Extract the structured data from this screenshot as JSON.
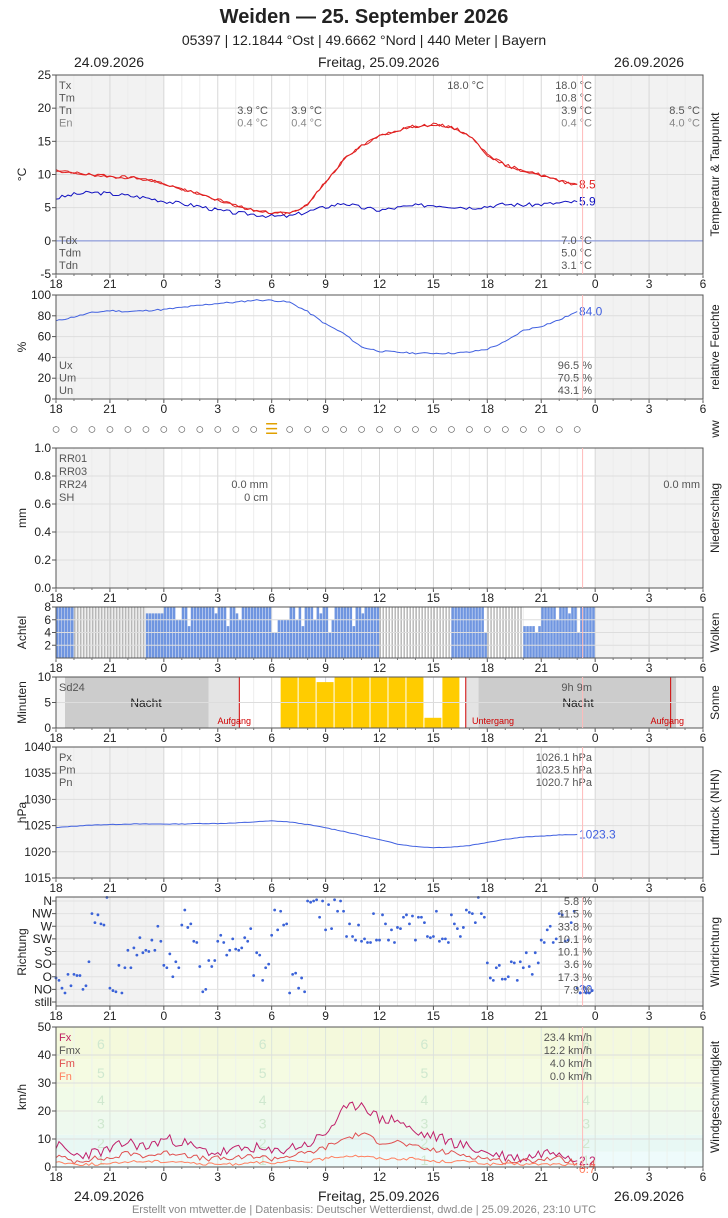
{
  "header": {
    "title": "Weiden  —  25. September 2026",
    "subtitle": "05397  |  12.1844 °Ost  |  49.6662 °Nord  |  440 Meter  |  Bayern",
    "date_prev": "24.09.2026",
    "date_main": "Freitag, 25.09.2026",
    "date_next": "26.09.2026"
  },
  "footer": {
    "credit": "Erstellt von mtwetter.de | Datenbasis: Deutscher Wetterdienst, dwd.de | 25.09.2026, 23:10 UTC"
  },
  "chart_data": [
    {
      "type": "line",
      "panel": "temperature",
      "side_label": "Temperatur & Taupunkt",
      "ylabel": "°C",
      "ylim": [
        -5,
        25
      ],
      "yticks": [
        -5,
        0,
        5,
        10,
        15,
        20,
        25
      ],
      "xticks": [
        "18",
        "21",
        "0",
        "3",
        "6",
        "9",
        "12",
        "15",
        "18",
        "21",
        "0",
        "3",
        "6"
      ],
      "x_hours": [
        -6,
        -5,
        -4,
        -3,
        -2,
        -1,
        0,
        1,
        2,
        3,
        4,
        5,
        6,
        7,
        8,
        9,
        10,
        11,
        12,
        13,
        14,
        15,
        16,
        17,
        18,
        19,
        20,
        21,
        22,
        23
      ],
      "series": [
        {
          "name": "",
          "color": "#e02020",
          "values": [
            10.5,
            10.3,
            9.9,
            9.7,
            9.6,
            9.3,
            8.6,
            7.8,
            7.0,
            6.2,
            5.3,
            4.6,
            4.2,
            4.1,
            5.5,
            8.9,
            12.2,
            14.3,
            15.8,
            16.7,
            17.3,
            17.5,
            17.2,
            15.9,
            13.0,
            11.4,
            10.6,
            9.9,
            9.0,
            8.5
          ]
        },
        {
          "name": "",
          "color": "#1010c0",
          "values": [
            6.4,
            7.0,
            7.3,
            7.1,
            6.8,
            6.5,
            6.0,
            5.6,
            5.2,
            4.6,
            4.2,
            4.0,
            3.7,
            3.7,
            4.4,
            5.1,
            5.7,
            5.0,
            4.6,
            5.0,
            5.3,
            5.4,
            5.2,
            5.0,
            5.2,
            5.5,
            5.4,
            5.5,
            5.7,
            5.9
          ]
        }
      ],
      "current_values": [
        "8.5",
        "5.9"
      ],
      "stats_left": [
        {
          "label": "Tx",
          "v0": "",
          "v1": "",
          "v2": "18.0 °C",
          "v3": "18.0 °C",
          "v4": ""
        },
        {
          "label": "Tm",
          "v0": "",
          "v1": "",
          "v2": "",
          "v3": "10.8 °C",
          "v4": ""
        },
        {
          "label": "Tn",
          "v0": "3.9 °C",
          "v1": "3.9 °C",
          "v2": "",
          "v3": "3.9 °C",
          "v4": "8.5 °C"
        },
        {
          "label": "En",
          "v0": "0.4 °C",
          "v1": "0.4 °C",
          "v2": "",
          "v3": "0.4 °C",
          "v4": "4.0 °C"
        }
      ],
      "stats_dew": [
        {
          "label": "Tdx",
          "value": "7.0 °C"
        },
        {
          "label": "Tdm",
          "value": "5.0 °C"
        },
        {
          "label": "Tdn",
          "value": "3.1 °C"
        }
      ]
    },
    {
      "type": "line",
      "panel": "humidity",
      "side_label": "relative Feuchte",
      "ylabel": "%",
      "ylim": [
        0,
        100
      ],
      "yticks": [
        0,
        20,
        40,
        60,
        80,
        100
      ],
      "x_hours": [
        -6,
        -5,
        -4,
        -3,
        -2,
        -1,
        0,
        1,
        2,
        3,
        4,
        5,
        6,
        7,
        8,
        9,
        10,
        11,
        12,
        13,
        14,
        15,
        16,
        17,
        18,
        19,
        20,
        21,
        22,
        23
      ],
      "series": [
        {
          "name": "",
          "color": "#4060e0",
          "values": [
            75,
            79,
            83,
            85,
            84,
            85,
            86,
            88,
            90,
            92,
            93,
            95,
            95,
            93,
            84,
            72,
            63,
            50,
            46,
            45,
            44,
            44,
            44,
            45,
            48,
            55,
            66,
            70,
            76,
            84
          ]
        }
      ],
      "current_values": [
        "84.0"
      ],
      "stats": [
        {
          "label": "Ux",
          "value": "96.5 %"
        },
        {
          "label": "Um",
          "value": "70.5 %"
        },
        {
          "label": "Un",
          "value": "43.1 %"
        }
      ]
    },
    {
      "type": "table",
      "panel": "weather-codes",
      "side_label": "ww",
      "symbols": [
        "○",
        "○",
        "○",
        "○",
        "○",
        "○",
        "○",
        "○",
        "○",
        "○",
        "○",
        "○",
        "☰",
        "○",
        "○",
        "○",
        "○",
        "○",
        "○",
        "○",
        "○",
        "○",
        "○",
        "○",
        "○",
        "○",
        "○",
        "○",
        "○",
        "○"
      ]
    },
    {
      "type": "bar",
      "panel": "precipitation",
      "side_label": "Niederschlag",
      "ylabel": "mm",
      "ylim": [
        0,
        1
      ],
      "yticks": [
        0.0,
        0.2,
        0.4,
        0.6,
        0.8,
        1.0
      ],
      "stats_labels": [
        "RR01",
        "RR03",
        "RR24",
        "SH"
      ],
      "rr24_day": "0.0 mm",
      "sh_day": "0 cm",
      "rr24_next": "0.0 mm"
    },
    {
      "type": "bar",
      "panel": "clouds",
      "side_label": "Wolken",
      "ylabel": "Achtel",
      "ylim": [
        0,
        8
      ],
      "yticks": [
        2,
        4,
        6,
        8
      ],
      "color": "#6f95e0",
      "x_hours": [
        -6,
        -5,
        -4,
        -3,
        -2,
        -1,
        0,
        1,
        2,
        3,
        4,
        5,
        6,
        7,
        8,
        9,
        10,
        11,
        12,
        13,
        14,
        15,
        16,
        17,
        18,
        19,
        20,
        21,
        22,
        23
      ],
      "values": [
        8,
        0,
        0,
        0,
        0,
        7,
        8,
        8,
        8,
        8,
        8,
        8,
        6,
        8,
        8,
        8,
        8,
        8,
        0,
        0,
        0,
        0,
        8,
        8,
        0,
        0,
        5,
        8,
        8,
        8
      ]
    },
    {
      "type": "bar",
      "panel": "sunshine",
      "side_label": "Sonne",
      "ylabel": "Minuten",
      "ylim": [
        0,
        10
      ],
      "yticks": [
        0,
        5,
        10
      ],
      "color": "#ffcc00",
      "label": "Sd24",
      "night_label": "Nacht",
      "sunrise_label": "Aufgang",
      "sunset_label": "Untergang",
      "total": "9h 9m",
      "x_hours": [
        7,
        8,
        9,
        10,
        11,
        12,
        13,
        14,
        15,
        16
      ],
      "values": [
        10,
        10,
        9,
        10,
        10,
        10,
        10,
        10,
        2,
        10
      ]
    },
    {
      "type": "line",
      "panel": "pressure",
      "side_label": "Luftdruck (NHN)",
      "ylabel": "hPa",
      "ylim": [
        1015,
        1040
      ],
      "yticks": [
        1015,
        1020,
        1025,
        1030,
        1035,
        1040
      ],
      "x_hours": [
        -6,
        -5,
        -4,
        -3,
        -2,
        -1,
        0,
        1,
        2,
        3,
        4,
        5,
        6,
        7,
        8,
        9,
        10,
        11,
        12,
        13,
        14,
        15,
        16,
        17,
        18,
        19,
        20,
        21,
        22,
        23
      ],
      "series": [
        {
          "name": "",
          "color": "#4060e0",
          "values": [
            1024.6,
            1024.9,
            1025.1,
            1025.2,
            1025.3,
            1025.3,
            1025.3,
            1025.3,
            1025.4,
            1025.4,
            1025.5,
            1025.7,
            1025.9,
            1025.7,
            1025.2,
            1024.6,
            1023.9,
            1023.1,
            1022.3,
            1021.5,
            1021.0,
            1020.8,
            1020.9,
            1021.2,
            1021.8,
            1022.4,
            1022.8,
            1023.0,
            1023.2,
            1023.3
          ]
        }
      ],
      "current_values": [
        "1023.3"
      ],
      "stats": [
        {
          "label": "Px",
          "value": "1026.1 hPa"
        },
        {
          "label": "Pm",
          "value": "1023.5 hPa"
        },
        {
          "label": "Pn",
          "value": "1020.7 hPa"
        }
      ]
    },
    {
      "type": "scatter",
      "panel": "wind-direction",
      "side_label": "Windrichtung",
      "ylabel": "Richtung",
      "categories": [
        "still",
        "NO",
        "O",
        "SO",
        "S",
        "SW",
        "W",
        "NW",
        "N"
      ],
      "x_hours": [
        -6,
        -5,
        -4,
        -3,
        -2,
        -1,
        0,
        1,
        2,
        3,
        4,
        5,
        6,
        7,
        8,
        9,
        10,
        11,
        12,
        13,
        14,
        15,
        16,
        17,
        18,
        19,
        20,
        21,
        22,
        23
      ],
      "values": [
        1,
        2,
        7,
        2,
        4,
        5,
        3,
        6,
        2,
        4,
        5,
        3,
        6,
        1,
        8,
        7,
        6,
        6,
        6,
        6,
        6,
        6,
        6,
        7,
        2,
        2,
        3,
        5,
        6,
        1
      ],
      "stats": [
        {
          "label": "N",
          "value": "5.8 %"
        },
        {
          "label": "NW",
          "value": "11.5 %"
        },
        {
          "label": "W",
          "value": "33.8 %"
        },
        {
          "label": "SW",
          "value": "10.1 %"
        },
        {
          "label": "S",
          "value": "10.1 %"
        },
        {
          "label": "SO",
          "value": "3.6 %"
        },
        {
          "label": "O",
          "value": "17.3 %"
        },
        {
          "label": "NO",
          "value": "7.9 %"
        },
        {
          "label": "still",
          "value": ""
        }
      ],
      "current_values": [
        "30"
      ]
    },
    {
      "type": "line",
      "panel": "wind-speed",
      "side_label": "Windgeschwindigkeit",
      "ylabel": "km/h",
      "ylim": [
        0,
        50
      ],
      "yticks": [
        0,
        10,
        20,
        30,
        40,
        50
      ],
      "beaufort": [
        "1",
        "2",
        "3",
        "4",
        "5",
        "6"
      ],
      "x_hours": [
        -6,
        -5,
        -4,
        -3,
        -2,
        -1,
        0,
        1,
        2,
        3,
        4,
        5,
        6,
        7,
        8,
        9,
        10,
        11,
        12,
        13,
        14,
        15,
        16,
        17,
        18,
        19,
        20,
        21,
        22,
        23
      ],
      "series": [
        {
          "name": "Fx",
          "color": "#c0206a",
          "values": [
            8,
            4,
            5,
            6,
            9,
            7,
            10,
            9,
            6,
            5,
            6,
            7,
            5,
            7,
            8,
            12,
            20,
            23,
            17,
            17,
            12,
            11,
            9,
            7,
            5,
            4,
            3,
            5,
            6,
            2.2
          ]
        },
        {
          "name": "Fmx",
          "color": "#e05050",
          "values": [
            4,
            2,
            3,
            3,
            5,
            4,
            5,
            5,
            3,
            3,
            3,
            4,
            3,
            4,
            5,
            7,
            10,
            12,
            9,
            9,
            7,
            6,
            5,
            4,
            3,
            2,
            2,
            3,
            3,
            1.4
          ]
        },
        {
          "name": "Fm",
          "color": "#ff8060",
          "values": [
            2,
            1,
            1,
            1,
            2,
            2,
            2,
            2,
            1,
            1,
            1,
            2,
            1,
            2,
            2,
            3,
            4,
            4,
            3,
            3,
            3,
            2,
            2,
            2,
            1,
            1,
            1,
            1,
            1,
            0.7
          ]
        }
      ],
      "current_values": [
        "2.2",
        "1.4",
        "0.7"
      ],
      "stats": [
        {
          "label": "Fx",
          "value": "23.4 km/h"
        },
        {
          "label": "Fmx",
          "value": "12.2 km/h"
        },
        {
          "label": "Fm",
          "value": "4.0 km/h"
        },
        {
          "label": "Fn",
          "value": "0.0 km/h"
        }
      ]
    }
  ]
}
